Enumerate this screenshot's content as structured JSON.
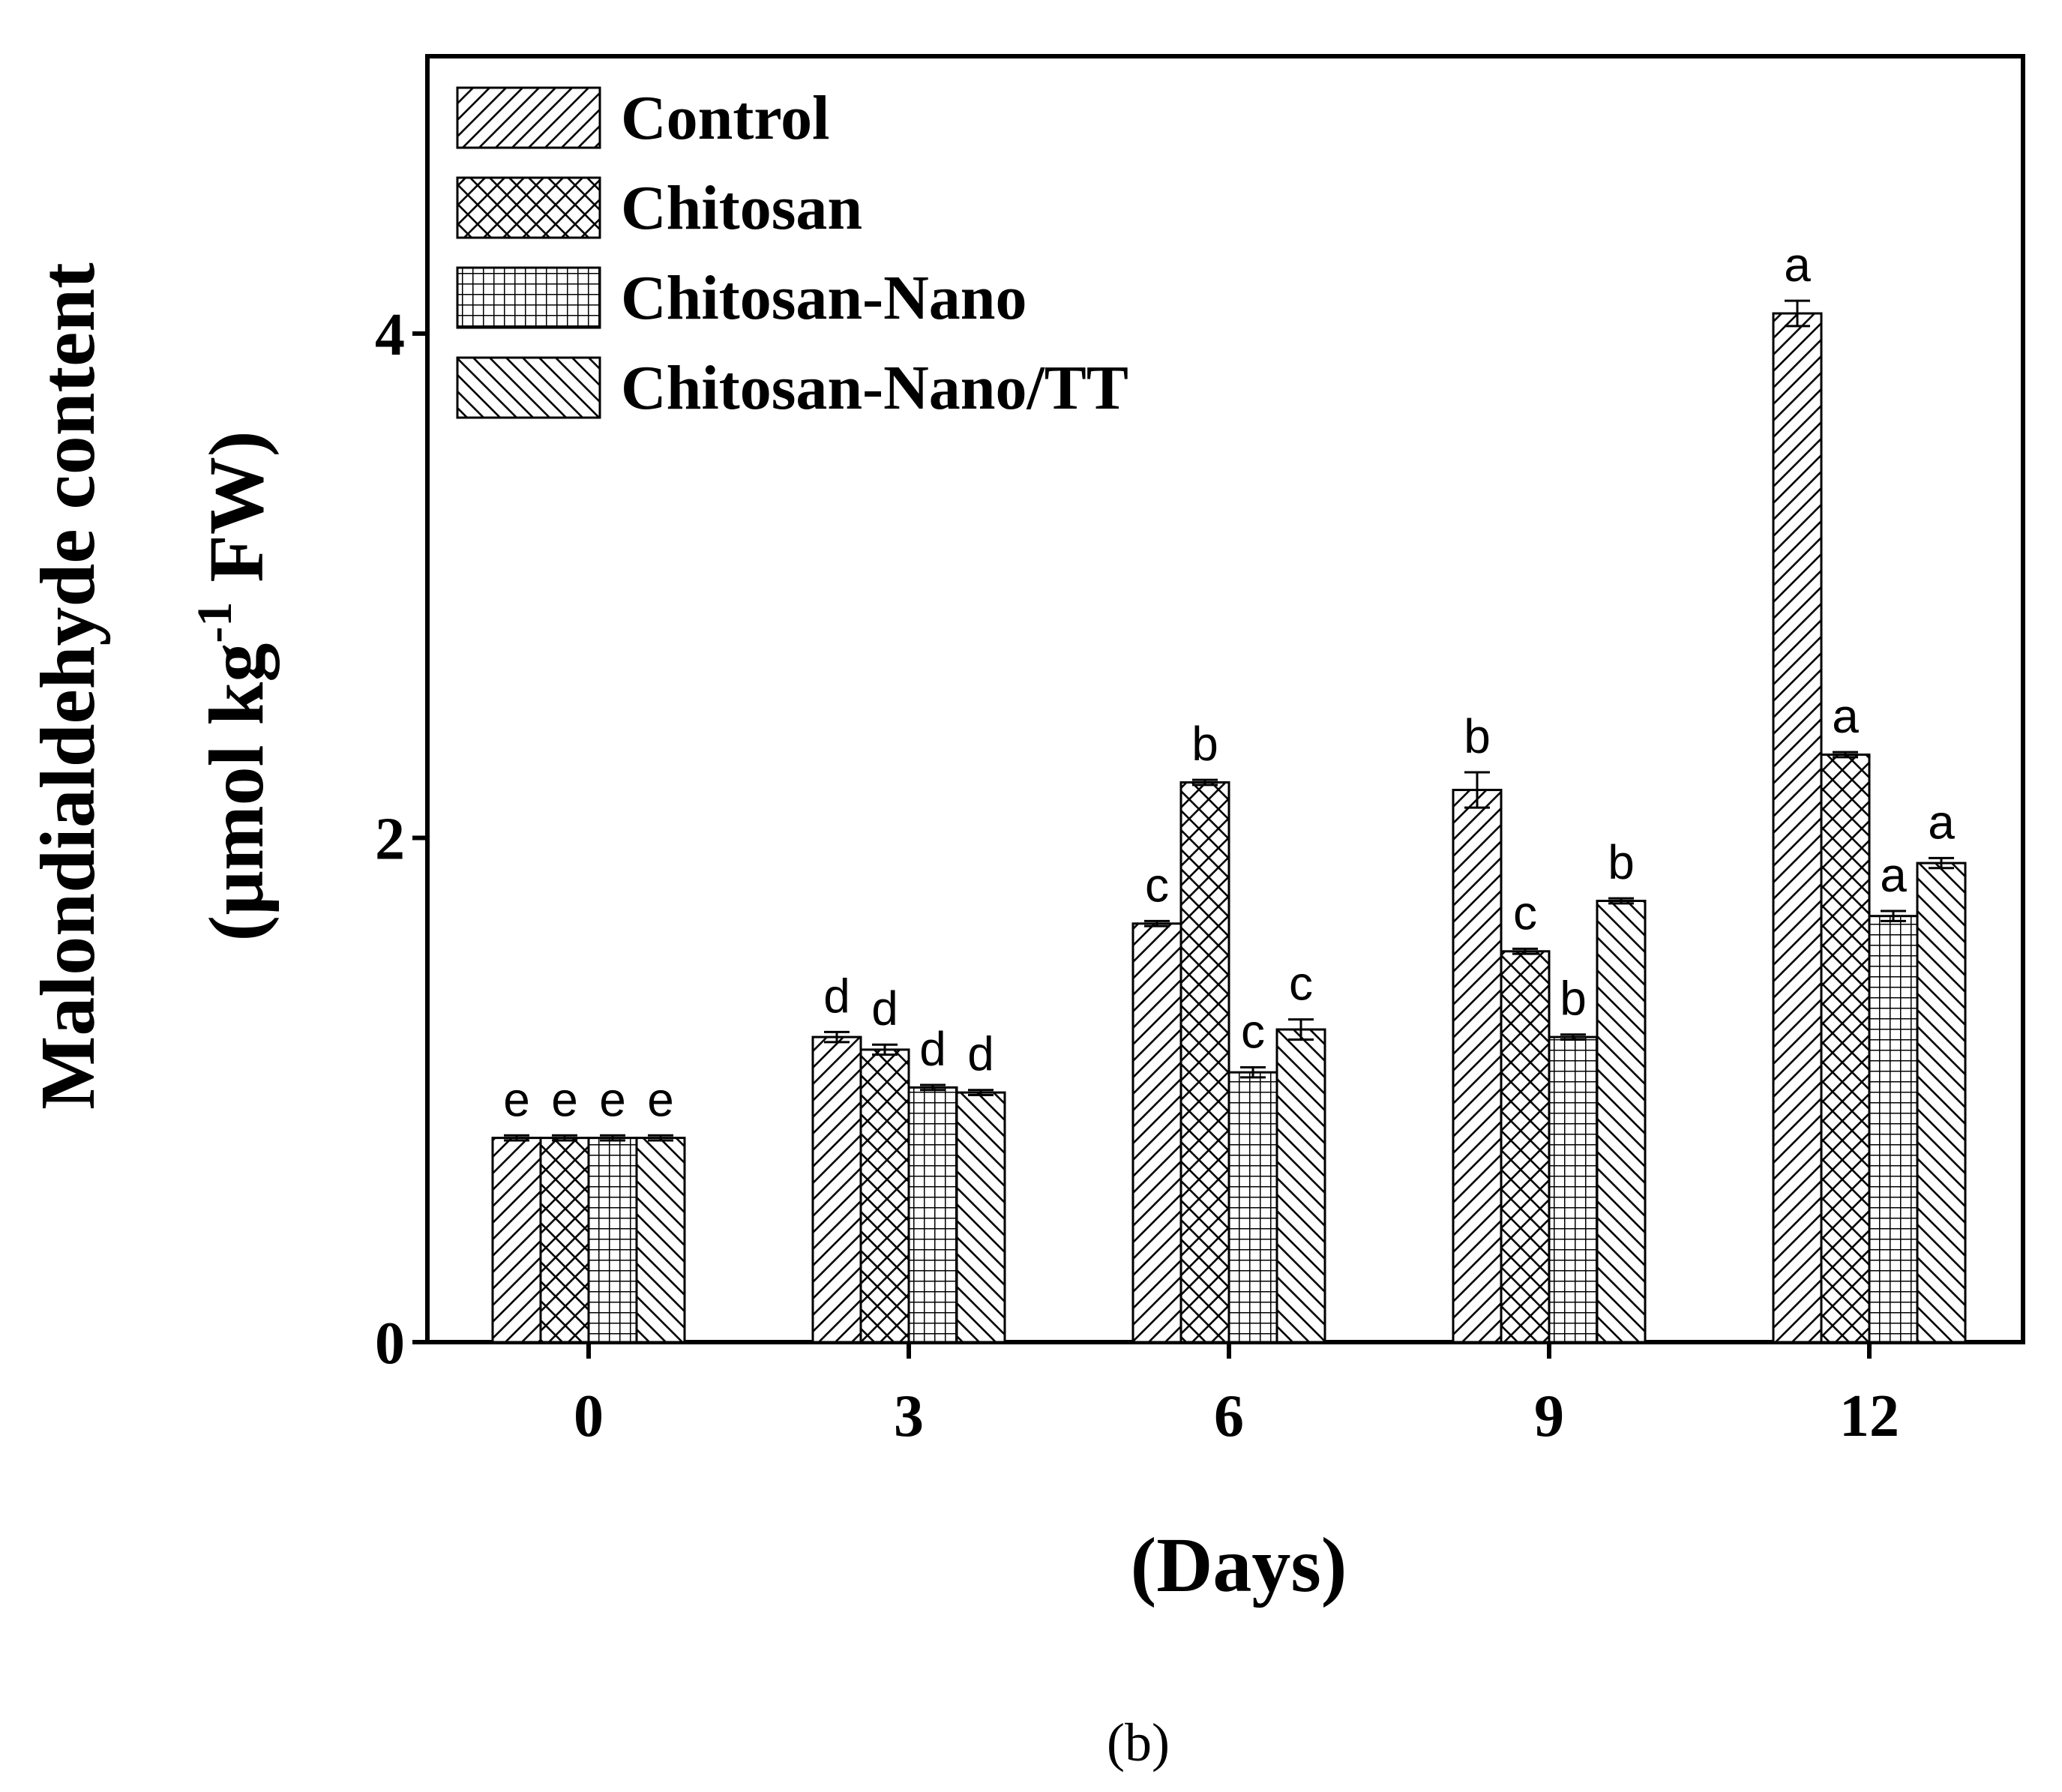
{
  "chart_data": {
    "type": "bar",
    "title": "",
    "xlabel": "(Days)",
    "ylabel_line1": "Malondialdehyde content",
    "ylabel_line2": "(µmol kg",
    "ylabel_sup": "-1",
    "ylabel_line2_tail": " FW)",
    "ylim": [
      0,
      5.1
    ],
    "yticks": [
      0,
      2,
      4
    ],
    "categories": [
      "0",
      "3",
      "6",
      "9",
      "12"
    ],
    "series": [
      {
        "name": "Control",
        "pattern": "fwd",
        "values": [
          0.81,
          1.21,
          1.66,
          2.19,
          4.08
        ],
        "errors": [
          0.01,
          0.02,
          0.01,
          0.07,
          0.05
        ],
        "letters": [
          "e",
          "d",
          "c",
          "b",
          "a"
        ]
      },
      {
        "name": "Chitosan",
        "pattern": "cross",
        "values": [
          0.81,
          1.16,
          2.22,
          1.55,
          2.33
        ],
        "errors": [
          0.01,
          0.02,
          0.01,
          0.01,
          0.01
        ],
        "letters": [
          "e",
          "d",
          "b",
          "c",
          "a"
        ]
      },
      {
        "name": "Chitosan-Nano",
        "pattern": "grid",
        "values": [
          0.81,
          1.01,
          1.07,
          1.21,
          1.69
        ],
        "errors": [
          0.01,
          0.01,
          0.02,
          0.01,
          0.02
        ],
        "letters": [
          "e",
          "d",
          "c",
          "b",
          "a"
        ]
      },
      {
        "name": "Chitosan-Nano/TT",
        "pattern": "back",
        "values": [
          0.81,
          0.99,
          1.24,
          1.75,
          1.9
        ],
        "errors": [
          0.01,
          0.01,
          0.04,
          0.01,
          0.02
        ],
        "letters": [
          "e",
          "d",
          "c",
          "b",
          "a"
        ]
      }
    ],
    "legend_position": "top-left",
    "grid": false,
    "panel_label": "(b)"
  }
}
